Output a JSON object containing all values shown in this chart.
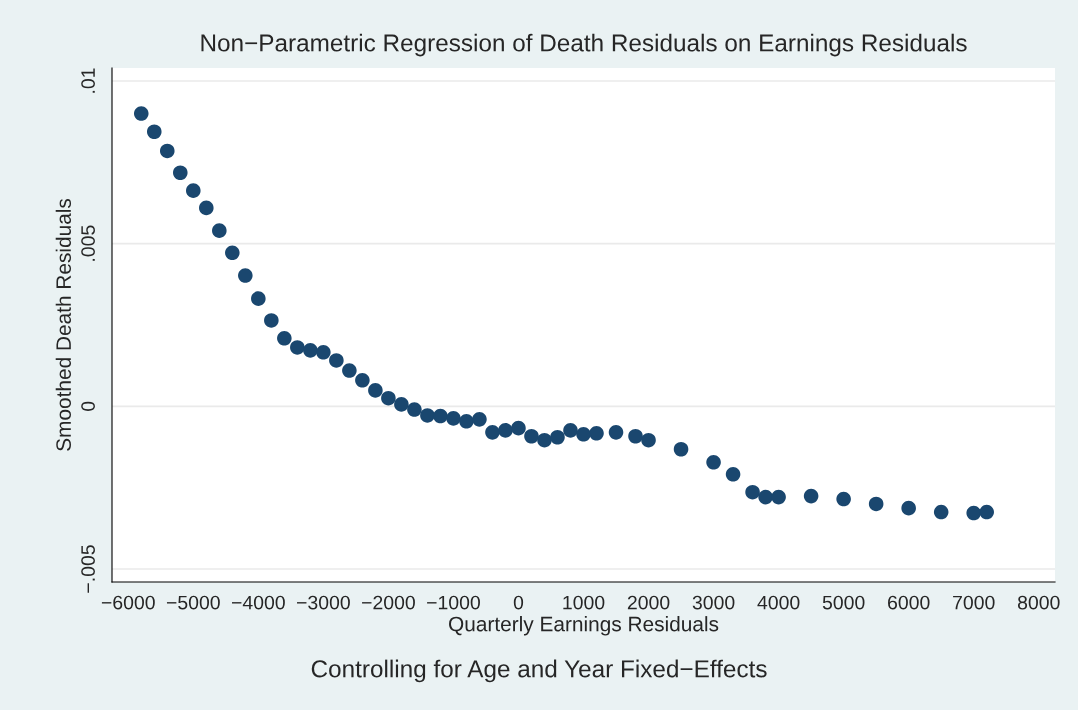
{
  "chart_data": {
    "type": "scatter",
    "title": "Non−Parametric Regression of Death Residuals on Earnings Residuals",
    "xlabel": "Quarterly Earnings Residuals",
    "ylabel": "Smoothed Death Residuals",
    "annotations": [
      "Controlling for Age and Year Fixed−Effects"
    ],
    "x": [
      -5800,
      -5600,
      -5400,
      -5200,
      -5000,
      -4800,
      -4600,
      -4400,
      -4200,
      -4000,
      -3800,
      -3600,
      -3400,
      -3200,
      -3000,
      -2800,
      -2600,
      -2400,
      -2200,
      -2000,
      -1800,
      -1600,
      -1400,
      -1200,
      -1000,
      -800,
      -600,
      -400,
      -200,
      0,
      200,
      400,
      600,
      800,
      1000,
      1200,
      1500,
      1800,
      2000,
      2500,
      3000,
      3300,
      3600,
      3800,
      4000,
      4500,
      5000,
      5500,
      6000,
      6500,
      7000,
      7200
    ],
    "series": [
      {
        "color": "#1a476f",
        "values": [
          0.009,
          0.00844,
          0.00785,
          0.00718,
          0.00663,
          0.0061,
          0.0054,
          0.00472,
          0.00402,
          0.00331,
          0.00264,
          0.00209,
          0.00181,
          0.00172,
          0.00166,
          0.00141,
          0.0011,
          0.0008,
          0.00049,
          0.00025,
          6e-05,
          -0.0001,
          -0.00028,
          -0.0003,
          -0.00037,
          -0.00046,
          -0.0004,
          -0.0008,
          -0.00074,
          -0.00067,
          -0.00092,
          -0.00104,
          -0.00095,
          -0.00074,
          -0.00086,
          -0.00083,
          -0.0008,
          -0.00092,
          -0.00104,
          -0.00132,
          -0.00172,
          -0.00209,
          -0.00264,
          -0.00279,
          -0.00279,
          -0.00276,
          -0.00285,
          -0.003,
          -0.00313,
          -0.00325,
          -0.00328,
          -0.00325
        ]
      }
    ],
    "xlim": [
      -6250,
      8250
    ],
    "xticks": [
      {
        "value": -6000,
        "label": "−6000"
      },
      {
        "value": -5000,
        "label": "−5000"
      },
      {
        "value": -4000,
        "label": "−4000"
      },
      {
        "value": -3000,
        "label": "−3000"
      },
      {
        "value": -2000,
        "label": "−2000"
      },
      {
        "value": -1000,
        "label": "−1000"
      },
      0,
      1000,
      2000,
      3000,
      4000,
      5000,
      6000,
      7000,
      8000
    ],
    "ylim": [
      -0.0054,
      0.0104
    ],
    "yticks": [
      {
        "value": -0.005,
        "label": "−.005"
      },
      {
        "value": 0,
        "label": "0"
      },
      {
        "value": 0.005,
        "label": ".005"
      },
      {
        "value": 0.01,
        "label": ".01"
      }
    ],
    "grid": "y",
    "marker": "circle"
  }
}
